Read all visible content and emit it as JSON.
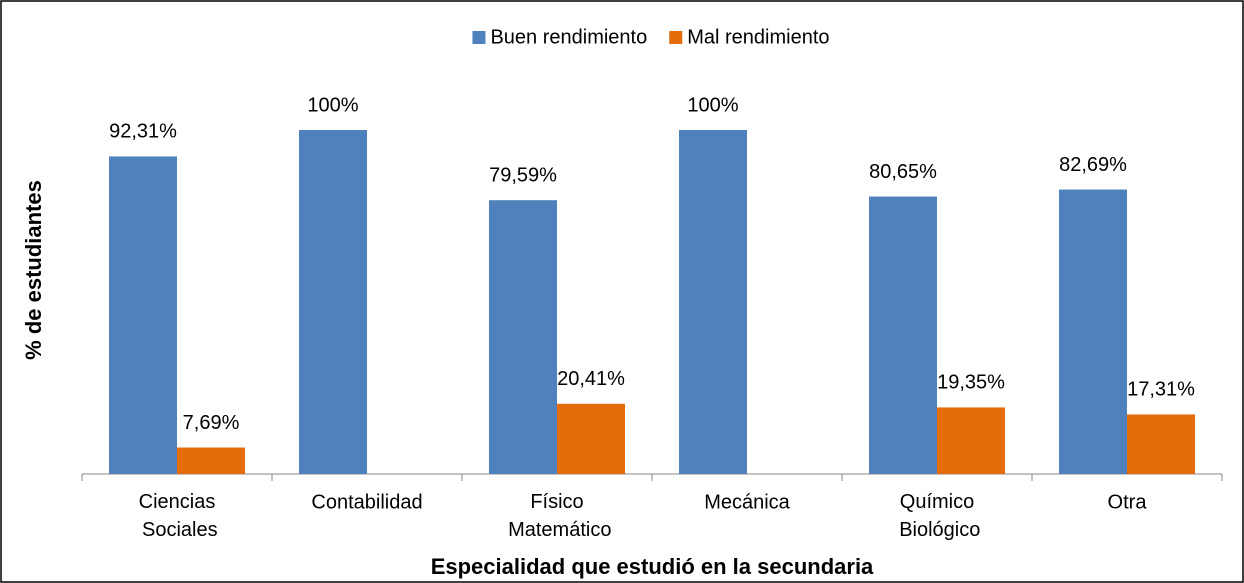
{
  "chart_data": {
    "type": "bar",
    "x_label": "Especialidad que estudió en la secundaria",
    "y_label": "% de estudiantes",
    "categories": [
      "Ciencias Sociales",
      "Contabilidad",
      "Físico Matemático",
      "Mecánica",
      "Químico Biológico",
      "Otra"
    ],
    "series": [
      {
        "name": "Buen rendimiento",
        "color": "#4f81bd",
        "values": [
          92.31,
          100,
          79.59,
          100,
          80.65,
          82.69
        ],
        "value_labels": [
          "92,31%",
          "100%",
          "79,59%",
          "100%",
          "80,65%",
          "82,69%"
        ]
      },
      {
        "name": "Mal rendimiento",
        "color": "#e46c0a",
        "values": [
          7.69,
          null,
          20.41,
          null,
          19.35,
          17.31
        ],
        "value_labels": [
          "7,69%",
          null,
          "20,41%",
          null,
          "19,35%",
          "17,31%"
        ]
      }
    ],
    "legend": "top"
  }
}
